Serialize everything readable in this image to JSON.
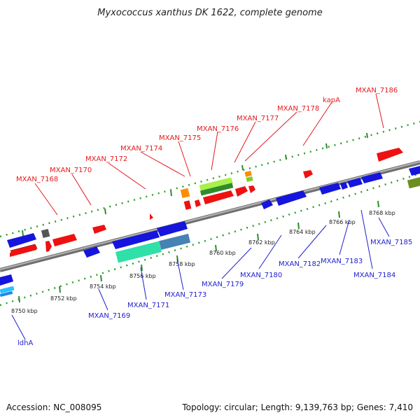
{
  "title": "Myxococcus xanthus DK 1622, complete genome",
  "footer": {
    "accession": "Accession: NC_008095",
    "topology": "Topology: circular; Length: 9,139,763 bp; Genes: 7,410"
  },
  "colors": {
    "forward_label": "#e41a1c",
    "reverse_label": "#1f1fd0",
    "backbone": "#8c8c8c",
    "forward_ticks": "#2e9e2e",
    "reverse_ticks": "#2e9e2e",
    "feature_red": "#ee1111",
    "feature_blue": "#1515dd",
    "feature_orange": "#ff8c00",
    "feature_lightgreen": "#9be32a",
    "feature_darkgreen": "#2e8b2e",
    "feature_olive": "#6b8e23",
    "feature_grey": "#666666",
    "feature_teal": "#2fe0a8",
    "feature_steel": "#4682b4",
    "feature_cyan": "#2ac0ff"
  },
  "ticks": [
    "8750 kbp",
    "8752 kbp",
    "8754 kbp",
    "8756 kbp",
    "8758 kbp",
    "8760 kbp",
    "8762 kbp",
    "8764 kbp",
    "8766 kbp",
    "8768 kbp"
  ],
  "forward_labels": [
    "MXAN_7168",
    "MXAN_7170",
    "MXAN_7172",
    "MXAN_7174",
    "MXAN_7175",
    "MXAN_7176",
    "MXAN_7177",
    "MXAN_7178",
    "kapA",
    "MXAN_7186"
  ],
  "reverse_labels": [
    "ldhA",
    "MXAN_7169",
    "MXAN_7171",
    "MXAN_7173",
    "MXAN_7179",
    "MXAN_7180",
    "MXAN_7182",
    "MXAN_7183",
    "MXAN_7184",
    "MXAN_7185"
  ]
}
